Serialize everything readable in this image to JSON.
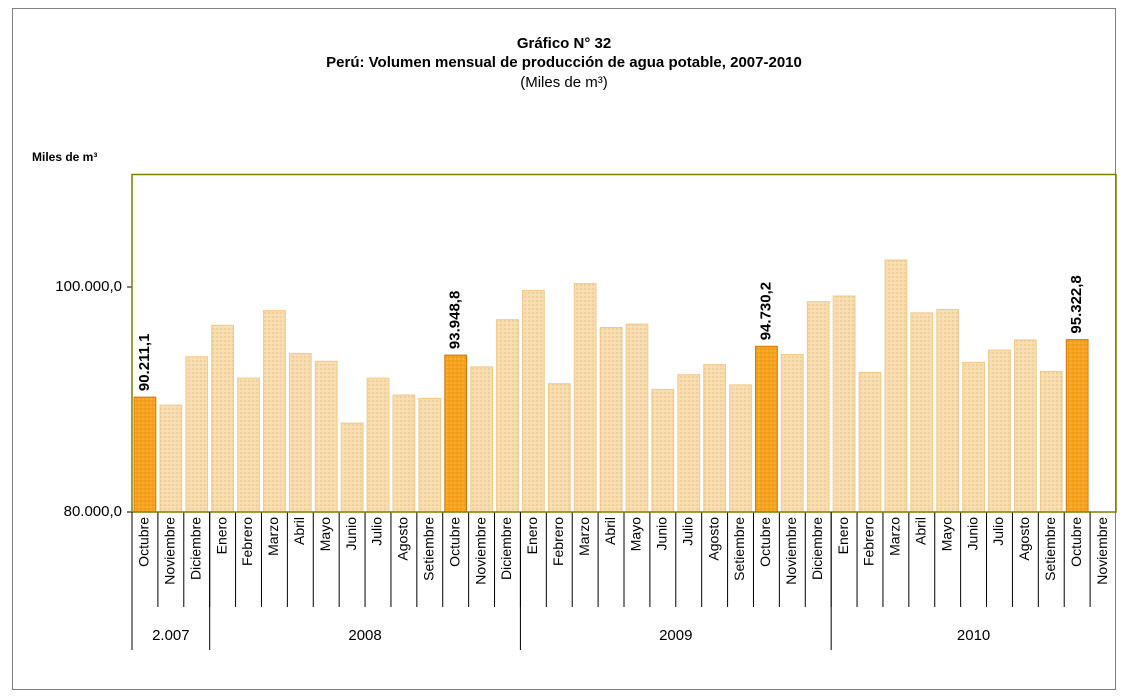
{
  "chart_data": {
    "type": "bar",
    "title": "Gráfico N° 32",
    "subtitle": "Perú: Volumen mensual de producción de agua potable, 2007-2010",
    "unit": "(Miles de m³)",
    "y_label": "Miles de m³",
    "categories": [
      "Octubre",
      "Noviembre",
      "Diciembre",
      "Enero",
      "Febrero",
      "Marzo",
      "Abril",
      "Mayo",
      "Junio",
      "Julio",
      "Agosto",
      "Setiembre",
      "Octubre",
      "Noviembre",
      "Diciembre",
      "Enero",
      "Febrero",
      "Marzo",
      "Abril",
      "Mayo",
      "Junio",
      "Julio",
      "Agosto",
      "Setiembre",
      "Octubre",
      "Noviembre",
      "Diciembre",
      "Enero",
      "Febrero",
      "Marzo",
      "Abril",
      "Mayo",
      "Junio",
      "Julio",
      "Agosto",
      "Setiembre",
      "Octubre",
      "Noviembre"
    ],
    "values": [
      90211.1,
      89500,
      93800,
      96600,
      91900,
      97900,
      94100,
      93400,
      87900,
      91900,
      90400,
      90100,
      93948.8,
      92900,
      97100,
      99700,
      91400,
      100300,
      96400,
      96700,
      90900,
      92200,
      93100,
      91300,
      94730.2,
      94000,
      98700,
      99200,
      92400,
      102400,
      97700,
      98000,
      93300,
      94400,
      95300,
      92500,
      95322.8,
      null
    ],
    "value_labels": [
      "90.211,1",
      null,
      null,
      null,
      null,
      null,
      null,
      null,
      null,
      null,
      null,
      null,
      "93.948,8",
      null,
      null,
      null,
      null,
      null,
      null,
      null,
      null,
      null,
      null,
      null,
      "94.730,2",
      null,
      null,
      null,
      null,
      null,
      null,
      null,
      null,
      null,
      null,
      null,
      "95.322,8",
      null
    ],
    "colors": [
      "#f7a21c",
      "#f7dcae",
      "#f7dcae",
      "#f7dcae",
      "#f7dcae",
      "#f7dcae",
      "#f7dcae",
      "#f7dcae",
      "#f7dcae",
      "#f7dcae",
      "#f7dcae",
      "#f7dcae",
      "#f7a21c",
      "#f7dcae",
      "#f7dcae",
      "#f7dcae",
      "#f7dcae",
      "#f7dcae",
      "#f7dcae",
      "#f7dcae",
      "#f7dcae",
      "#f7dcae",
      "#f7dcae",
      "#f7dcae",
      "#f7a21c",
      "#f7dcae",
      "#f7dcae",
      "#f7dcae",
      "#f7dcae",
      "#f7dcae",
      "#f7dcae",
      "#f7dcae",
      "#f7dcae",
      "#f7dcae",
      "#f7dcae",
      "#f7dcae",
      "#f7a21c",
      "#f7dcae"
    ],
    "groups": [
      {
        "label": "2.007",
        "span": 3
      },
      {
        "label": "2008",
        "span": 12
      },
      {
        "label": "2009",
        "span": 12
      },
      {
        "label": "2010",
        "span": 11
      }
    ],
    "ylim": [
      80000,
      110000
    ],
    "yticks": [
      {
        "value": 80000,
        "label": "80.000,0"
      },
      {
        "value": 100000,
        "label": "100.000,0"
      }
    ],
    "grid": false
  }
}
